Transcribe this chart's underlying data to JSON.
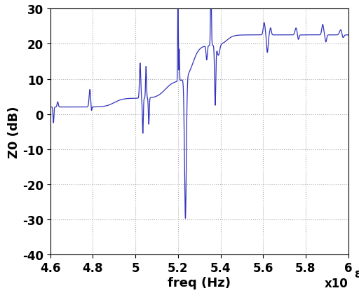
{
  "xlabel": "freq (Hz)",
  "ylabel": "Z0 (dB)",
  "xlim": [
    460000000.0,
    600000000.0
  ],
  "ylim": [
    -40,
    30
  ],
  "xticks": [
    460000000.0,
    480000000.0,
    500000000.0,
    520000000.0,
    540000000.0,
    560000000.0,
    580000000.0,
    600000000.0
  ],
  "xtick_labels": [
    "4.6",
    "4.8",
    "5",
    "5.2",
    "5.4",
    "5.6",
    "5.8",
    "6"
  ],
  "yticks": [
    -40,
    -30,
    -20,
    -10,
    0,
    10,
    20,
    30
  ],
  "multiplier_label": "x10",
  "line_color": "#3333bb",
  "background_color": "#ffffff",
  "grid_color": "#aaaaaa",
  "grid_linestyle": ":",
  "figsize": [
    5.12,
    4.39
  ],
  "dpi": 100
}
